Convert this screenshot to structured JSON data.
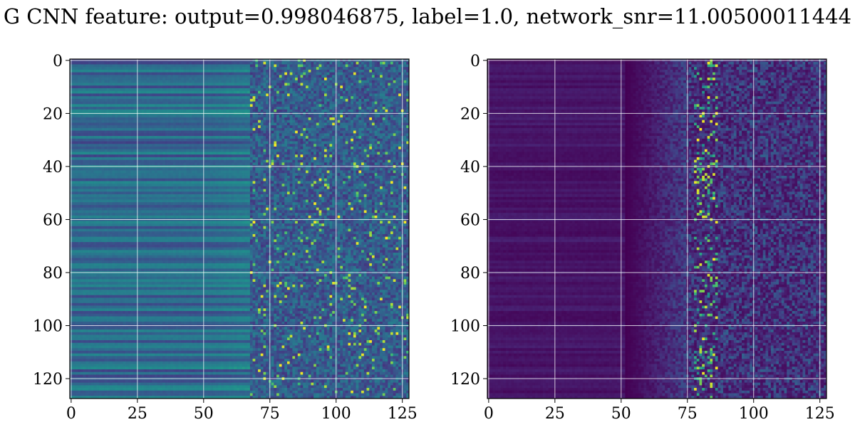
{
  "title": "G CNN feature: output=0.998046875, label=1.0, network_snr=11.00500011444",
  "colormap": "viridis",
  "grid": true,
  "grid_color": "#ffffff",
  "chart_data": [
    {
      "type": "heatmap",
      "rows": 128,
      "cols": 128,
      "xlim": [
        0,
        127
      ],
      "ylim": [
        127,
        0
      ],
      "xticks": [
        0,
        25,
        50,
        75,
        100,
        125
      ],
      "yticks": [
        0,
        20,
        40,
        60,
        80,
        100,
        120
      ],
      "title": "",
      "xlabel": "",
      "ylabel": "",
      "pattern": "left columns smooth mid-level horizontal bands; right columns noisy with bright speckles"
    },
    {
      "type": "heatmap",
      "rows": 128,
      "cols": 128,
      "xlim": [
        0,
        127
      ],
      "ylim": [
        127,
        0
      ],
      "xticks": [
        0,
        25,
        50,
        75,
        100,
        125
      ],
      "yticks": [
        0,
        20,
        40,
        60,
        80,
        100,
        120
      ],
      "title": "",
      "xlabel": "",
      "ylabel": "",
      "pattern": "left columns mostly dark; right columns noisy with brightest spots near column 80-85"
    }
  ]
}
